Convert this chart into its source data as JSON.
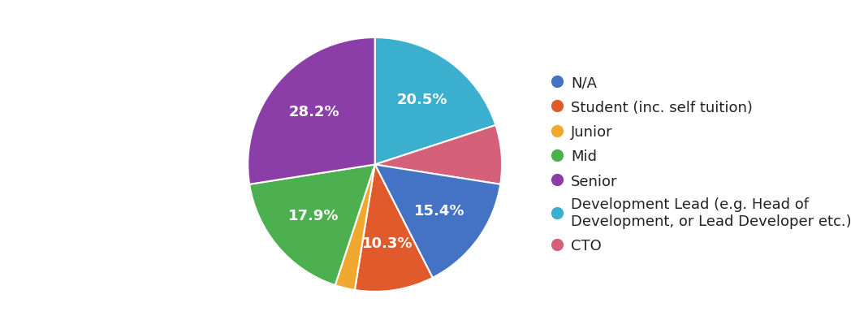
{
  "labels": [
    "Development Lead",
    "CTO",
    "N/A",
    "Student",
    "Junior",
    "Mid",
    "Senior"
  ],
  "values": [
    20.5,
    7.7,
    15.4,
    10.3,
    2.6,
    17.9,
    28.2
  ],
  "colors": [
    "#3AAFCE",
    "#D4607A",
    "#4472C4",
    "#E05A2B",
    "#F0A830",
    "#4CAF50",
    "#8B3EA8"
  ],
  "pct_labels": [
    "20.5%",
    "",
    "15.4%",
    "10.3%",
    "",
    "17.9%",
    "28.2%"
  ],
  "legend_labels": [
    "N/A",
    "Student (inc. self tuition)",
    "Junior",
    "Mid",
    "Senior",
    "Development Lead (e.g. Head of\nDevelopment, or Lead Developer etc.)",
    "CTO"
  ],
  "legend_colors": [
    "#4472C4",
    "#E05A2B",
    "#F0A830",
    "#4CAF50",
    "#8B3EA8",
    "#3AAFCE",
    "#D4607A"
  ],
  "startangle": 90,
  "background_color": "#ffffff",
  "text_color": "#222222",
  "label_fontsize": 13,
  "legend_fontsize": 13
}
